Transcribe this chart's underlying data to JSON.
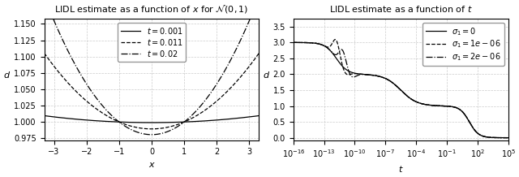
{
  "left_title": "LIDL estimate as a function of $x$ for $\\mathcal{N}(0,1)$",
  "right_title": "LIDL estimate as a function of $t$",
  "left_xlabel": "$x$",
  "left_ylabel": "$d$",
  "right_xlabel": "$t$",
  "right_ylabel": "$d$",
  "left_xlim": [
    -3.3,
    3.3
  ],
  "left_ylim": [
    0.972,
    1.158
  ],
  "right_ylim": [
    -0.08,
    3.75
  ],
  "left_yticks": [
    0.975,
    1.0,
    1.025,
    1.05,
    1.075,
    1.1,
    1.125,
    1.15
  ],
  "right_yticks": [
    0.0,
    0.5,
    1.0,
    1.5,
    2.0,
    2.5,
    3.0,
    3.5
  ],
  "left_xticks": [
    -3,
    -2,
    -1,
    0,
    1,
    2,
    3
  ],
  "right_xticks_log": [
    -16,
    -13,
    -10,
    -7,
    -4,
    -1,
    2,
    5
  ],
  "t_values": [
    0.001,
    0.011,
    0.02
  ],
  "t_labels": [
    "$t=0.001$",
    "$t=0.011$",
    "$t=0.02$"
  ],
  "sigma_values": [
    0.0,
    1e-06,
    2e-06
  ],
  "sigma_labels": [
    "$\\sigma_1=0$",
    "$\\sigma_1=1e-06$",
    "$\\sigma_1=2e-06$"
  ],
  "line_color": "black",
  "grid_color": "#cccccc",
  "figsize": [
    6.4,
    2.18
  ],
  "dpi": 100
}
